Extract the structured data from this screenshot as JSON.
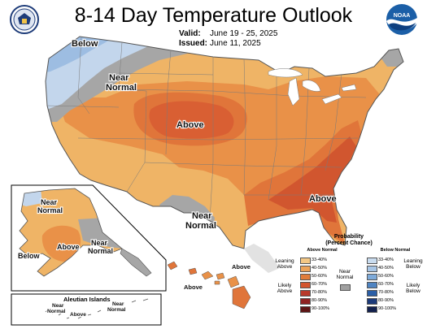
{
  "header": {
    "title": "8-14 Day Temperature Outlook",
    "valid_label": "Valid:",
    "valid_value": "June 19 - 25, 2025",
    "issued_label": "Issued:",
    "issued_value": "June 11, 2025"
  },
  "logos": {
    "left": "commerce-seal",
    "right": "noaa-logo",
    "right_text": "NOAA"
  },
  "map_labels": {
    "below_nw": "Below",
    "near_normal_nw_1": "Near",
    "near_normal_nw_2": "Normal",
    "above_plains": "Above",
    "above_southeast": "Above",
    "near_normal_sw_1": "Near",
    "near_normal_sw_2": "Normal",
    "alaska_near_normal_1": "Near",
    "alaska_near_normal_2": "Normal",
    "alaska_above": "Above",
    "alaska_near_normal_se_1": "Near",
    "alaska_near_normal_se_2": "Normal",
    "alaska_below": "Below",
    "aleutian_title": "Aleutian Islands",
    "aleutian_near_1": "Near",
    "aleutian_near_1b": "Normal",
    "aleutian_above": "Above",
    "aleutian_near_2": "Near",
    "aleutian_near_2b": "Normal",
    "hawaii_above_1": "Above",
    "hawaii_above_2": "Above"
  },
  "legend": {
    "title_1": "Probability",
    "title_2": "(Percent Chance)",
    "above_header": "Above Normal",
    "below_header": "Below Normal",
    "leaning_above_1": "Leaning",
    "leaning_above_2": "Above",
    "likely_above_1": "Likely",
    "likely_above_2": "Above",
    "near_normal_1": "Near",
    "near_normal_2": "Normal",
    "leaning_below_1": "Leaning",
    "leaning_below_2": "Below",
    "likely_below_1": "Likely",
    "likely_below_2": "Below",
    "ranges": [
      "33-40%",
      "40-50%",
      "50-60%",
      "60-70%",
      "70-80%",
      "80-90%",
      "90-100%"
    ],
    "above_colors": [
      "#f3c785",
      "#eca35a",
      "#e07c3b",
      "#d3542e",
      "#b8392b",
      "#8f2222",
      "#5e1515"
    ],
    "below_colors": [
      "#c9dcef",
      "#a8c6e6",
      "#7eaad9",
      "#4f84c2",
      "#2a5ea6",
      "#1c3a7a",
      "#12204d"
    ],
    "near_color": "#a0a0a0"
  },
  "colors": {
    "leaning_above": "#efb466",
    "above_40": "#e99148",
    "above_50": "#e0753a",
    "above_60": "#d1562f",
    "near_normal": "#a6a6a6",
    "below_33": "#c3d6ec",
    "below_40": "#9dbde2",
    "water": "#ffffff",
    "state_lines": "#7a7a7a"
  }
}
